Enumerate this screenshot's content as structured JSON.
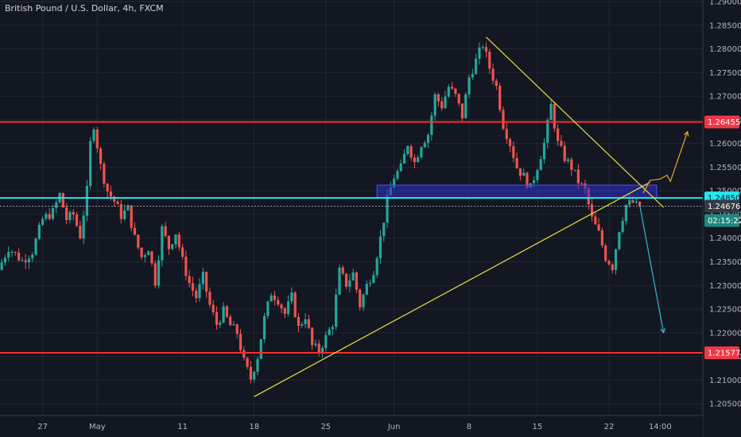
{
  "header": {
    "title": "British Pound / U.S. Dollar, 4h, FXCM"
  },
  "colors": {
    "background": "#131722",
    "grid": "#232733",
    "axis_text": "#b2b5be",
    "up": "#26a69a",
    "down": "#ef5350",
    "resistance": "#ff2b2b",
    "support_cyan": "#26e6f0",
    "trendline": "#e9e13a",
    "zone": "#2f32c8",
    "arrow_up": "#f0a030",
    "arrow_down": "#35b8d6"
  },
  "chart_data": {
    "type": "candlestick",
    "title": "British Pound / U.S. Dollar, 4h, FXCM",
    "ylim": [
      1.2025,
      1.29
    ],
    "y_ticks": [
      "1.29000",
      "1.28500",
      "1.28000",
      "1.27500",
      "1.27000",
      "1.26500",
      "1.26000",
      "1.25500",
      "1.25000",
      "1.24500",
      "1.24000",
      "1.23500",
      "1.23000",
      "1.22500",
      "1.22000",
      "1.21500",
      "1.21000",
      "1.20500"
    ],
    "x_ticks": [
      {
        "label": "27",
        "slot": 12
      },
      {
        "label": "May",
        "slot": 28
      },
      {
        "label": "11",
        "slot": 53
      },
      {
        "label": "18",
        "slot": 74
      },
      {
        "label": "25",
        "slot": 95
      },
      {
        "label": "Jun",
        "slot": 115
      },
      {
        "label": "8",
        "slot": 137
      },
      {
        "label": "15",
        "slot": 157
      },
      {
        "label": "22",
        "slot": 178
      },
      {
        "label": "14:00",
        "slot": 193
      }
    ],
    "slots_total": 206,
    "key_points": [
      [
        0,
        1.2333
      ],
      [
        3,
        1.238
      ],
      [
        7,
        1.2352
      ],
      [
        10,
        1.2372
      ],
      [
        13,
        1.244
      ],
      [
        16,
        1.2455
      ],
      [
        18,
        1.2492
      ],
      [
        20,
        1.244
      ],
      [
        22,
        1.245
      ],
      [
        24,
        1.2405
      ],
      [
        26,
        1.25
      ],
      [
        27,
        1.26
      ],
      [
        28,
        1.264
      ],
      [
        30,
        1.2552
      ],
      [
        32,
        1.25
      ],
      [
        34,
        1.2478
      ],
      [
        36,
        1.2448
      ],
      [
        38,
        1.2462
      ],
      [
        40,
        1.24
      ],
      [
        42,
        1.236
      ],
      [
        44,
        1.238
      ],
      [
        46,
        1.2308
      ],
      [
        48,
        1.242
      ],
      [
        50,
        1.238
      ],
      [
        52,
        1.2412
      ],
      [
        54,
        1.2352
      ],
      [
        56,
        1.2305
      ],
      [
        58,
        1.2275
      ],
      [
        60,
        1.2318
      ],
      [
        62,
        1.2258
      ],
      [
        64,
        1.2218
      ],
      [
        66,
        1.2245
      ],
      [
        68,
        1.2215
      ],
      [
        70,
        1.22
      ],
      [
        72,
        1.2138
      ],
      [
        74,
        1.2103
      ],
      [
        76,
        1.215
      ],
      [
        78,
        1.223
      ],
      [
        80,
        1.2285
      ],
      [
        82,
        1.227
      ],
      [
        84,
        1.224
      ],
      [
        86,
        1.2275
      ],
      [
        88,
        1.221
      ],
      [
        90,
        1.2236
      ],
      [
        92,
        1.2172
      ],
      [
        94,
        1.2162
      ],
      [
        96,
        1.219
      ],
      [
        98,
        1.222
      ],
      [
        100,
        1.233
      ],
      [
        102,
        1.2303
      ],
      [
        104,
        1.2325
      ],
      [
        106,
        1.2258
      ],
      [
        108,
        1.23
      ],
      [
        110,
        1.2333
      ],
      [
        112,
        1.24
      ],
      [
        114,
        1.248
      ],
      [
        116,
        1.253
      ],
      [
        118,
        1.2548
      ],
      [
        120,
        1.26
      ],
      [
        122,
        1.256
      ],
      [
        124,
        1.26
      ],
      [
        126,
        1.262
      ],
      [
        128,
        1.27
      ],
      [
        130,
        1.268
      ],
      [
        132,
        1.272
      ],
      [
        134,
        1.27
      ],
      [
        136,
        1.2658
      ],
      [
        138,
        1.274
      ],
      [
        140,
        1.2775
      ],
      [
        142,
        1.281
      ],
      [
        144,
        1.276
      ],
      [
        146,
        1.272
      ],
      [
        148,
        1.264
      ],
      [
        150,
        1.26
      ],
      [
        152,
        1.255
      ],
      [
        154,
        1.253
      ],
      [
        156,
        1.2505
      ],
      [
        158,
        1.2552
      ],
      [
        160,
        1.26
      ],
      [
        162,
        1.268
      ],
      [
        164,
        1.26
      ],
      [
        166,
        1.257
      ],
      [
        168,
        1.255
      ],
      [
        170,
        1.252
      ],
      [
        172,
        1.25
      ],
      [
        174,
        1.244
      ],
      [
        176,
        1.241
      ],
      [
        178,
        1.236
      ],
      [
        180,
        1.234
      ],
      [
        182,
        1.242
      ],
      [
        184,
        1.247
      ],
      [
        186,
        1.2475
      ],
      [
        187,
        1.2468
      ]
    ],
    "horizontal_lines": [
      {
        "value": 1.26455,
        "label": "1.26455",
        "kind": "resistance"
      },
      {
        "value": 1.2485,
        "label": "1.24850",
        "kind": "support_cyan"
      },
      {
        "value": 1.21577,
        "label": "1.21577",
        "kind": "resistance"
      },
      {
        "value": 1.24676,
        "label": "1.24676",
        "kind": "last_price",
        "countdown": "02:15:22"
      }
    ],
    "trendlines": [
      {
        "from": [
          74,
          1.2065
        ],
        "to": [
          190,
          1.2518
        ]
      },
      {
        "from": [
          142,
          1.2825
        ],
        "to": [
          194,
          1.2465
        ]
      }
    ],
    "zone": {
      "x0": 110,
      "x1": 192,
      "y0": 1.2485,
      "y1": 1.2512
    },
    "arrows": [
      {
        "kind": "arrow_up",
        "points": [
          [
            188,
            1.2495
          ],
          [
            190,
            1.2522
          ],
          [
            193,
            1.2525
          ],
          [
            195,
            1.2533
          ],
          [
            196,
            1.252
          ],
          [
            201,
            1.2625
          ]
        ]
      },
      {
        "kind": "arrow_down",
        "points": [
          [
            187,
            1.247
          ],
          [
            194,
            1.22
          ]
        ]
      }
    ]
  }
}
